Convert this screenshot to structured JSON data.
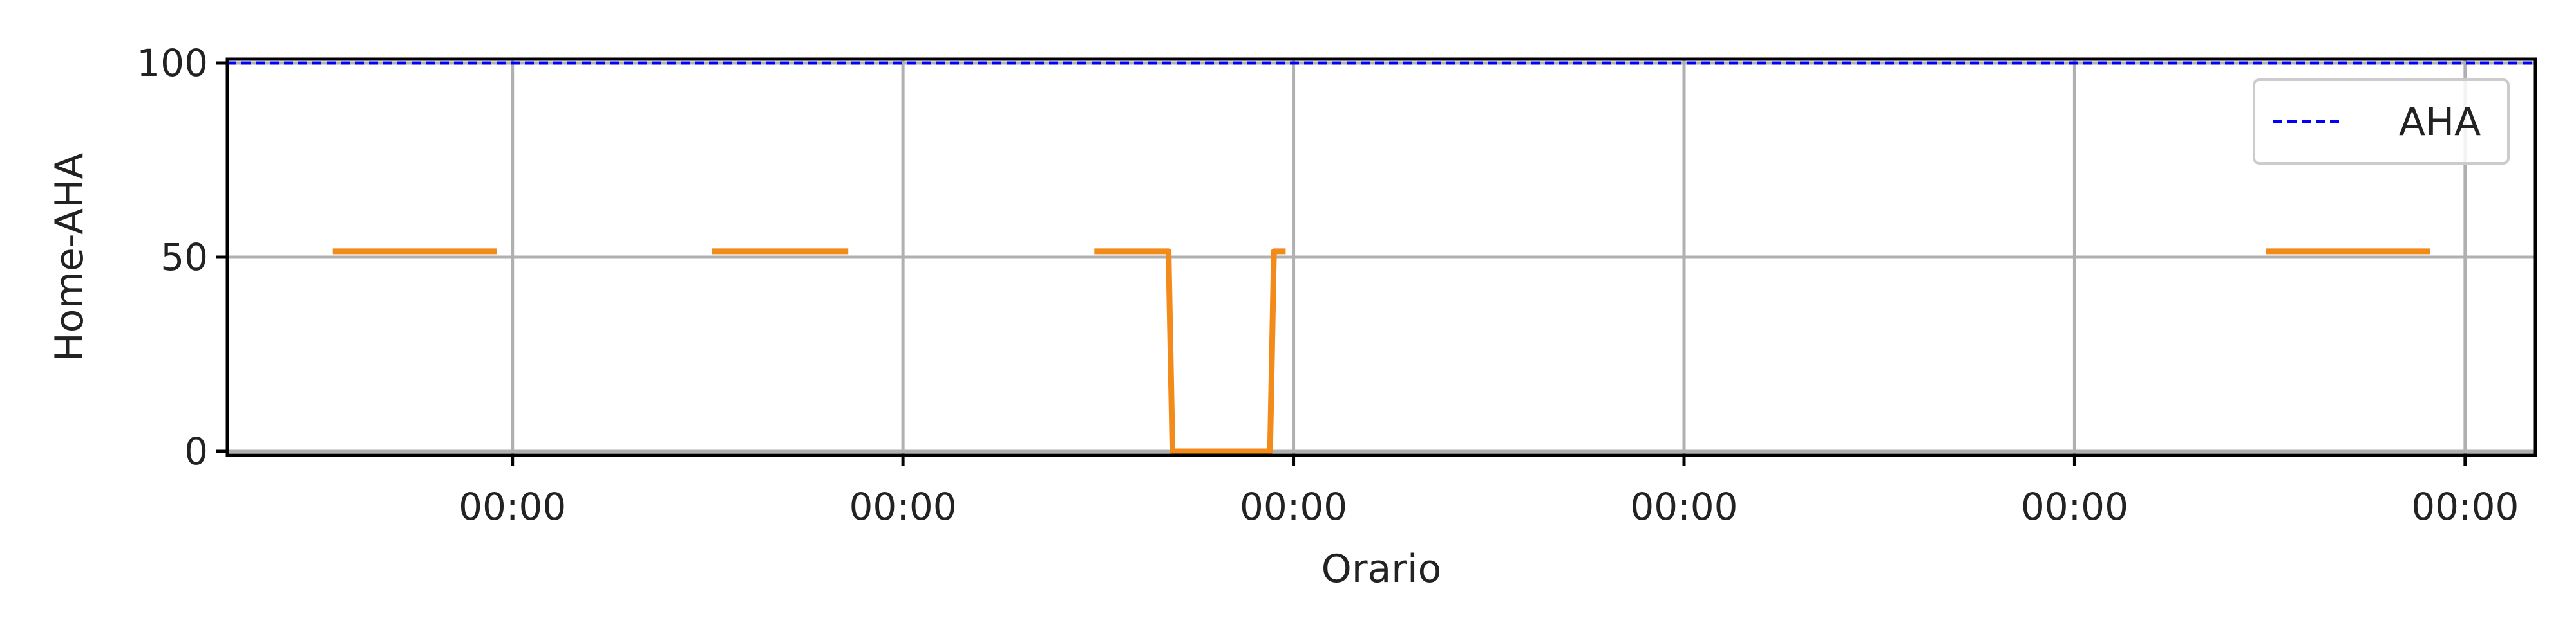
{
  "chart_data": {
    "type": "line",
    "title": "",
    "xlabel": "Orario",
    "ylabel": "Home-AHA",
    "xlim": [
      -0.73,
      5.18
    ],
    "ylim": [
      -1,
      101
    ],
    "x_ticks": [
      {
        "value": 0,
        "label": "00:00"
      },
      {
        "value": 1,
        "label": "00:00"
      },
      {
        "value": 2,
        "label": "00:00"
      },
      {
        "value": 3,
        "label": "00:00"
      },
      {
        "value": 4,
        "label": "00:00"
      },
      {
        "value": 5,
        "label": "00:00"
      }
    ],
    "y_ticks": [
      {
        "value": 0,
        "label": "0"
      },
      {
        "value": 50,
        "label": "50"
      },
      {
        "value": 100,
        "label": "100"
      }
    ],
    "grid": true,
    "legend": {
      "placement": "upper right"
    },
    "series": [
      {
        "name": "",
        "color": "#f28b1a",
        "segments": [
          [
            [
              -0.46,
              51.5
            ],
            [
              -0.04,
              51.5
            ]
          ],
          [
            [
              0.51,
              51.5
            ],
            [
              0.86,
              51.5
            ]
          ],
          [
            [
              1.49,
              51.5
            ],
            [
              1.68,
              51.5
            ],
            [
              1.69,
              0
            ],
            [
              1.94,
              0
            ],
            [
              1.95,
              51.5
            ],
            [
              1.98,
              51.5
            ]
          ],
          [
            [
              4.49,
              51.5
            ],
            [
              4.91,
              51.5
            ]
          ]
        ]
      },
      {
        "name": "AHA",
        "color": "#0000ff",
        "line_style": "dashed",
        "hline": 100
      }
    ]
  }
}
